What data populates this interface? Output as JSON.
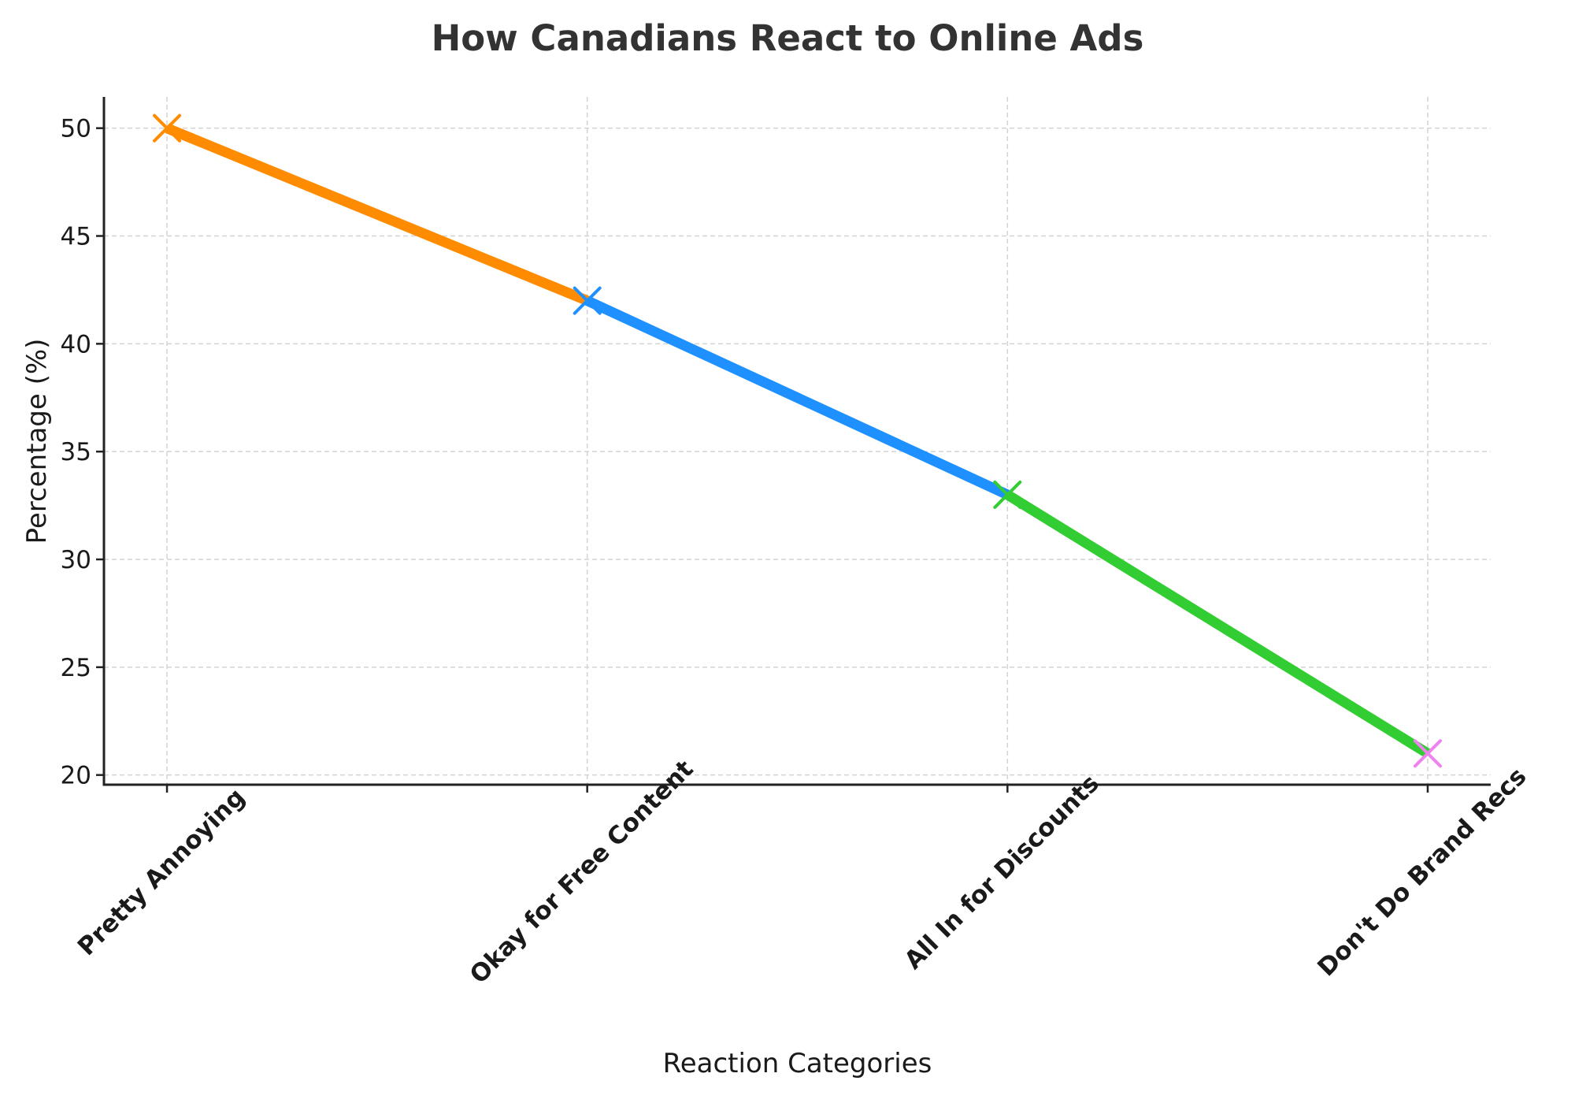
{
  "chart_data": {
    "type": "line",
    "title": "How Canadians React to Online Ads",
    "xlabel": "Reaction Categories",
    "ylabel": "Percentage (%)",
    "categories": [
      "Pretty Annoying",
      "Okay for Free Content",
      "All In for Discounts",
      "Don't Do Brand Recs"
    ],
    "values": [
      50,
      42,
      33,
      21
    ],
    "segment_colors": [
      "#FF8C00",
      "#1E90FF",
      "#32CD32"
    ],
    "marker_colors": [
      "#FF8C00",
      "#1E90FF",
      "#32CD32",
      "#EE82EE"
    ],
    "marker": "x",
    "yticks": [
      20,
      25,
      30,
      35,
      40,
      45,
      50
    ],
    "ylim": [
      19.55,
      51.45
    ],
    "grid": true,
    "grid_style": "dashed",
    "xtick_rotation": 45,
    "xtick_bold": true,
    "legend": null
  }
}
